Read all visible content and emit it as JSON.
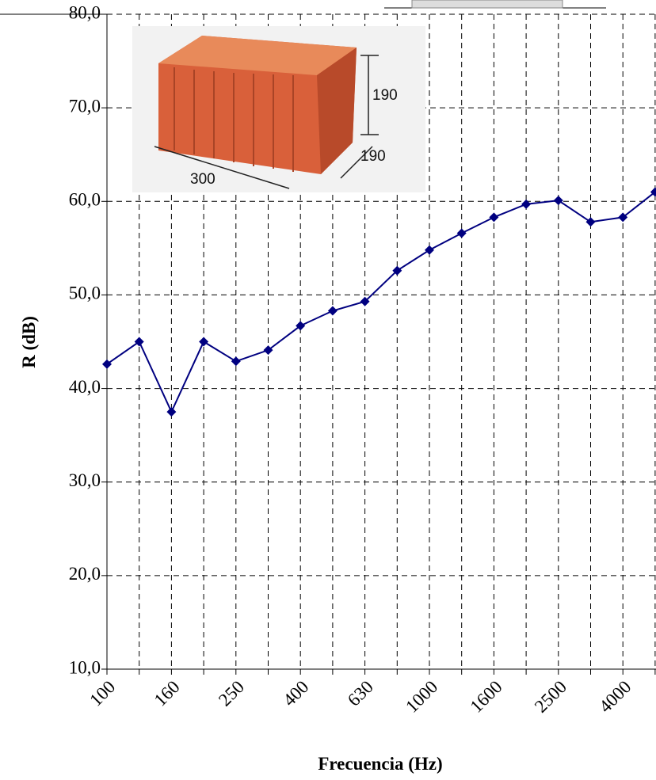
{
  "chart_data": {
    "type": "line",
    "xlabel": "Frecuencia (Hz)",
    "ylabel": "R (dB)",
    "categories": [
      "100",
      null,
      "160",
      null,
      "250",
      null,
      "400",
      null,
      "630",
      null,
      "1000",
      null,
      "1600",
      null,
      "2500",
      null,
      "4000",
      null
    ],
    "series": [
      {
        "name": "R",
        "color": "#000080",
        "values": [
          42.6,
          45.0,
          37.5,
          45.0,
          42.9,
          44.1,
          46.7,
          48.3,
          49.3,
          52.6,
          54.8,
          56.6,
          58.3,
          59.7,
          60.1,
          57.8,
          58.3,
          61.0
        ]
      }
    ],
    "ylim": [
      10,
      80
    ],
    "yticks": [
      {
        "value": 10,
        "label": "10,0"
      },
      {
        "value": 20,
        "label": "20,0"
      },
      {
        "value": 30,
        "label": "30,0"
      },
      {
        "value": 40,
        "label": "40,0"
      },
      {
        "value": 50,
        "label": "50,0"
      },
      {
        "value": 60,
        "label": "60,0"
      },
      {
        "value": 70,
        "label": "70,0"
      },
      {
        "value": 80,
        "label": "80,0"
      }
    ],
    "grid": true,
    "annotations": [
      "190",
      "190",
      "300"
    ]
  }
}
